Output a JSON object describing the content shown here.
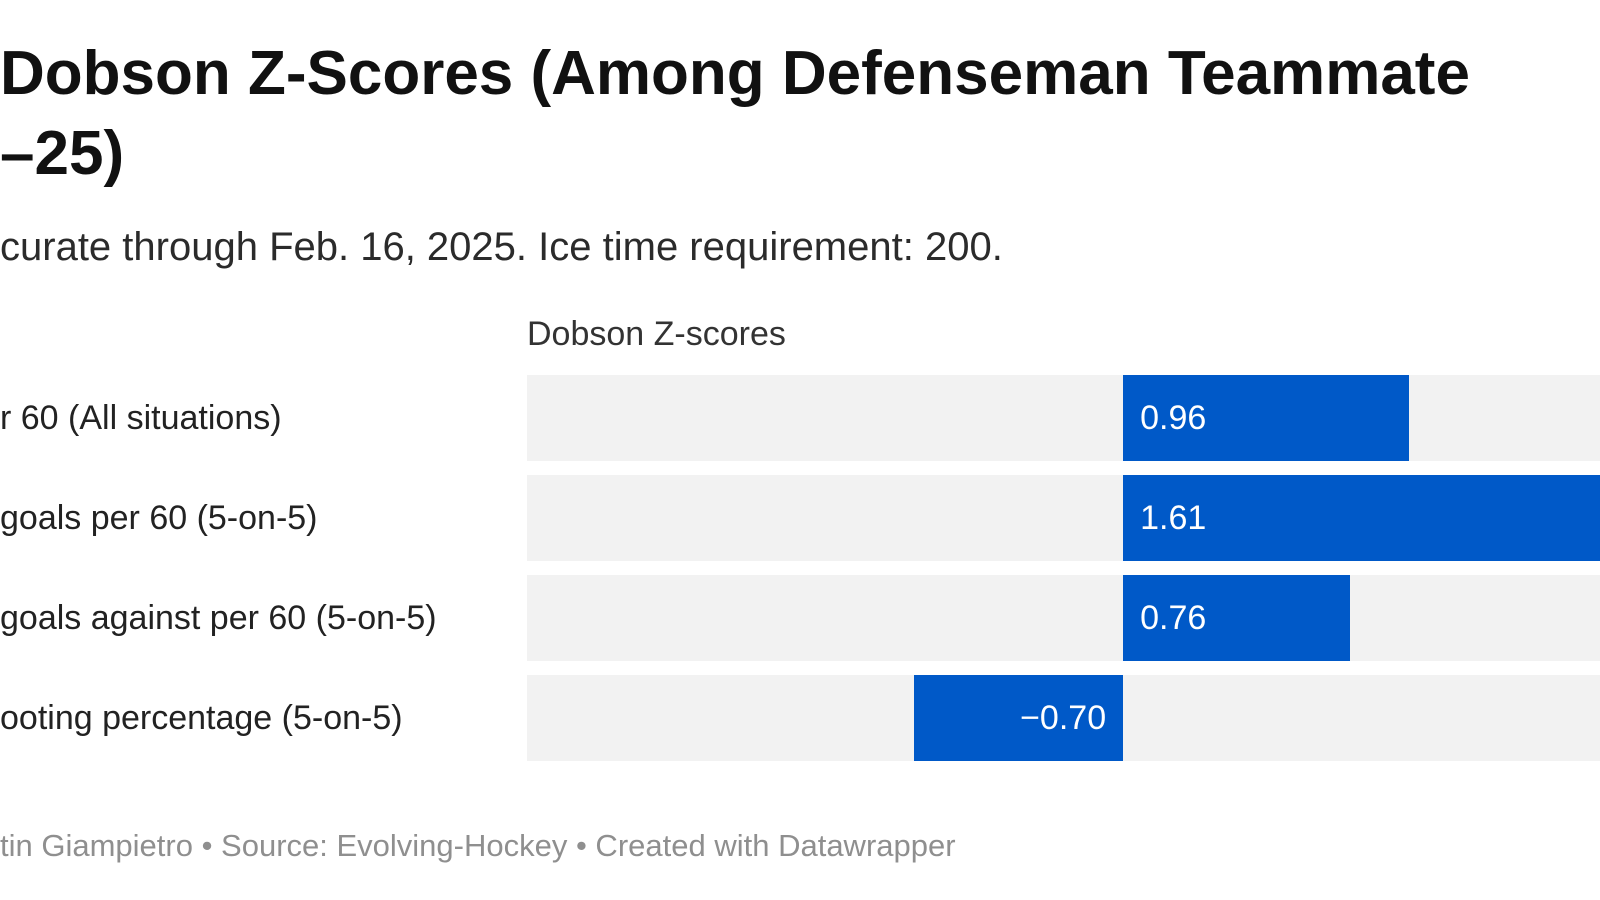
{
  "chart_data": {
    "type": "bar",
    "orientation": "horizontal",
    "title_lines": [
      "Dobson Z-Scores (Among Defenseman Teammate",
      "–25)"
    ],
    "subtitle": "curate through Feb. 16, 2025. Ice time requirement: 200.",
    "column_header": "Dobson Z-scores",
    "categories": [
      "r 60 (All situations)",
      " goals per 60 (5-on-5)",
      " goals against per 60 (5-on-5)",
      "ooting percentage (5-on-5)"
    ],
    "values": [
      0.96,
      1.61,
      0.76,
      -0.7
    ],
    "value_labels": [
      "0.96",
      "1.61",
      "0.76",
      "−0.70"
    ],
    "xlim": [
      -2.0,
      1.6
    ],
    "bar_color": "#0059c8",
    "track_color": "#f2f2f2",
    "footer": "tin Giampietro • Source: Evolving-Hockey • Created with Datawrapper"
  }
}
